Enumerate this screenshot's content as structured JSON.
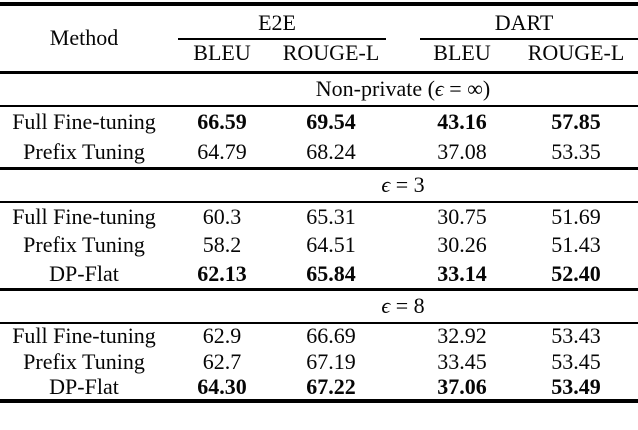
{
  "table": {
    "headers": {
      "method": "Method",
      "groups": [
        {
          "label": "E2E",
          "sub": [
            "BLEU",
            "ROUGE-L"
          ]
        },
        {
          "label": "DART",
          "sub": [
            "BLEU",
            "ROUGE-L"
          ]
        }
      ]
    },
    "sections": [
      {
        "title_parts": {
          "pre": "Non-private (",
          "epsilon": "ϵ",
          "equals": " = ",
          "value": "∞",
          "post": ")"
        },
        "rows": [
          {
            "method": "Full Fine-tuning",
            "values": [
              "66.59",
              "69.54",
              "43.16",
              "57.85"
            ],
            "bold": true
          },
          {
            "method": "Prefix Tuning",
            "values": [
              "64.79",
              "68.24",
              "37.08",
              "53.35"
            ],
            "bold": false
          }
        ]
      },
      {
        "title_parts": {
          "pre": "",
          "epsilon": "ϵ",
          "equals": " = ",
          "value": "3",
          "post": ""
        },
        "rows": [
          {
            "method": "Full Fine-tuning",
            "values": [
              "60.3",
              "65.31",
              "30.75",
              "51.69"
            ],
            "bold": false
          },
          {
            "method": "Prefix Tuning",
            "values": [
              "58.2",
              "64.51",
              "30.26",
              "51.43"
            ],
            "bold": false
          },
          {
            "method": "DP-Flat",
            "values": [
              "62.13",
              "65.84",
              "33.14",
              "52.40"
            ],
            "bold": true
          }
        ]
      },
      {
        "title_parts": {
          "pre": "",
          "epsilon": "ϵ",
          "equals": " = ",
          "value": "8",
          "post": ""
        },
        "rows": [
          {
            "method": "Full Fine-tuning",
            "values": [
              "62.9",
              "66.69",
              "32.92",
              "53.43"
            ],
            "bold": false
          },
          {
            "method": "Prefix Tuning",
            "values": [
              "62.7",
              "67.19",
              "33.45",
              "53.45"
            ],
            "bold": false
          },
          {
            "method": "DP-Flat",
            "values": [
              "64.30",
              "67.22",
              "37.06",
              "53.49"
            ],
            "bold": true
          }
        ]
      }
    ],
    "colors": {
      "text": "#060606",
      "rule": "#000000",
      "background": "#ffffff"
    }
  }
}
